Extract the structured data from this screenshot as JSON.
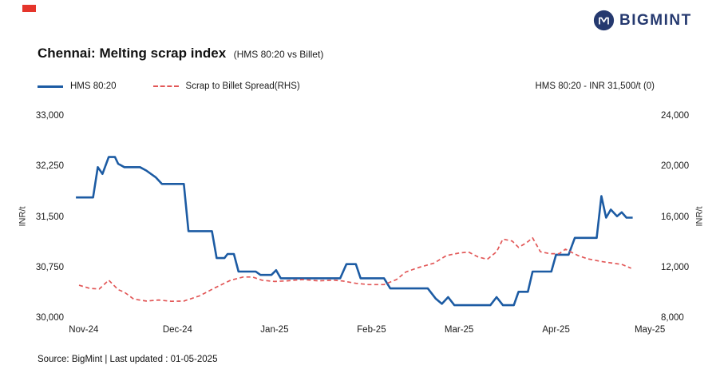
{
  "header": {
    "logo_text": "BIGMINT"
  },
  "footer": {
    "text": "Source: BigMint | Last updated : 01-05-2025"
  },
  "chart_data": {
    "type": "line",
    "title": "Chennai: Melting scrap index",
    "subtitle": "(HMS 80:20 vs Billet)",
    "annotation": "HMS 80:20 - INR 31,500/t (0)",
    "grid": false,
    "legend_position": "top-left",
    "x_range": [
      -4.3,
      183
    ],
    "x_ticks": [
      {
        "label": "Nov-24",
        "x": 0
      },
      {
        "label": "Dec-24",
        "x": 30
      },
      {
        "label": "Jan-25",
        "x": 61
      },
      {
        "label": "Feb-25",
        "x": 92
      },
      {
        "label": "Mar-25",
        "x": 120
      },
      {
        "label": "Apr-25",
        "x": 151
      },
      {
        "label": "May-25",
        "x": 181
      }
    ],
    "left_axis": {
      "label": "INR/t",
      "range": [
        30000,
        33000
      ],
      "ticks": [
        {
          "v": 30000,
          "label": "30,000"
        },
        {
          "v": 30750,
          "label": "30,750"
        },
        {
          "v": 31500,
          "label": "31,500"
        },
        {
          "v": 32250,
          "label": "32,250"
        },
        {
          "v": 33000,
          "label": "33,000"
        }
      ]
    },
    "right_axis": {
      "label": "INR/t",
      "range": [
        8000,
        24000
      ],
      "ticks": [
        {
          "v": 8000,
          "label": "8,000"
        },
        {
          "v": 12000,
          "label": "12,000"
        },
        {
          "v": 16000,
          "label": "16,000"
        },
        {
          "v": 20000,
          "label": "20,000"
        },
        {
          "v": 24000,
          "label": "24,000"
        }
      ]
    },
    "series": [
      {
        "name": "HMS 80:20",
        "axis": "left",
        "color": "#1c5ba3",
        "style": "solid",
        "points": [
          [
            -2.5,
            31800
          ],
          [
            3,
            31800
          ],
          [
            4.5,
            32250
          ],
          [
            6,
            32150
          ],
          [
            8,
            32400
          ],
          [
            10,
            32400
          ],
          [
            11,
            32300
          ],
          [
            13,
            32250
          ],
          [
            18,
            32250
          ],
          [
            20,
            32200
          ],
          [
            23,
            32100
          ],
          [
            25,
            32000
          ],
          [
            32,
            32000
          ],
          [
            33.5,
            31300
          ],
          [
            41,
            31300
          ],
          [
            42.5,
            30900
          ],
          [
            45,
            30900
          ],
          [
            46,
            30960
          ],
          [
            48,
            30960
          ],
          [
            49.5,
            30700
          ],
          [
            55,
            30700
          ],
          [
            56.5,
            30650
          ],
          [
            60,
            30650
          ],
          [
            61.5,
            30720
          ],
          [
            63,
            30600
          ],
          [
            82,
            30600
          ],
          [
            84,
            30810
          ],
          [
            87,
            30810
          ],
          [
            88.5,
            30600
          ],
          [
            96,
            30600
          ],
          [
            98,
            30450
          ],
          [
            110,
            30450
          ],
          [
            112.5,
            30300
          ],
          [
            114.5,
            30220
          ],
          [
            116.5,
            30320
          ],
          [
            118.5,
            30200
          ],
          [
            130,
            30200
          ],
          [
            132,
            30320
          ],
          [
            134,
            30200
          ],
          [
            137.5,
            30200
          ],
          [
            139,
            30400
          ],
          [
            142,
            30400
          ],
          [
            143.5,
            30700
          ],
          [
            149.5,
            30700
          ],
          [
            151,
            30950
          ],
          [
            155,
            30950
          ],
          [
            157,
            31200
          ],
          [
            164,
            31200
          ],
          [
            165.5,
            31820
          ],
          [
            167,
            31500
          ],
          [
            168.5,
            31620
          ],
          [
            170.5,
            31520
          ],
          [
            172,
            31580
          ],
          [
            173.5,
            31500
          ],
          [
            175.5,
            31500
          ]
        ]
      },
      {
        "name": "Scrap to Billet Spread(RHS)",
        "axis": "right",
        "color": "#e25757",
        "style": "dashed",
        "points": [
          [
            -1.5,
            10650
          ],
          [
            2,
            10400
          ],
          [
            5,
            10350
          ],
          [
            8,
            11050
          ],
          [
            11,
            10300
          ],
          [
            13,
            10100
          ],
          [
            16,
            9550
          ],
          [
            20,
            9400
          ],
          [
            24,
            9480
          ],
          [
            28,
            9380
          ],
          [
            32,
            9400
          ],
          [
            37,
            9800
          ],
          [
            42,
            10450
          ],
          [
            47,
            11050
          ],
          [
            51,
            11300
          ],
          [
            54,
            11300
          ],
          [
            57,
            11050
          ],
          [
            61,
            10950
          ],
          [
            65,
            11000
          ],
          [
            70,
            11100
          ],
          [
            75,
            11000
          ],
          [
            80,
            11050
          ],
          [
            83,
            10980
          ],
          [
            87,
            10800
          ],
          [
            91,
            10700
          ],
          [
            96,
            10700
          ],
          [
            100,
            11100
          ],
          [
            103,
            11700
          ],
          [
            107,
            12050
          ],
          [
            112,
            12400
          ],
          [
            116,
            13000
          ],
          [
            120,
            13200
          ],
          [
            123,
            13280
          ],
          [
            126,
            12900
          ],
          [
            129,
            12700
          ],
          [
            132,
            13300
          ],
          [
            134,
            14300
          ],
          [
            137,
            14150
          ],
          [
            139,
            13650
          ],
          [
            141.5,
            14000
          ],
          [
            143.5,
            14400
          ],
          [
            146,
            13300
          ],
          [
            149,
            13150
          ],
          [
            152,
            13150
          ],
          [
            154,
            13500
          ],
          [
            158,
            13000
          ],
          [
            161,
            12750
          ],
          [
            165,
            12550
          ],
          [
            169,
            12400
          ],
          [
            172,
            12300
          ],
          [
            175,
            12000
          ]
        ]
      }
    ]
  }
}
